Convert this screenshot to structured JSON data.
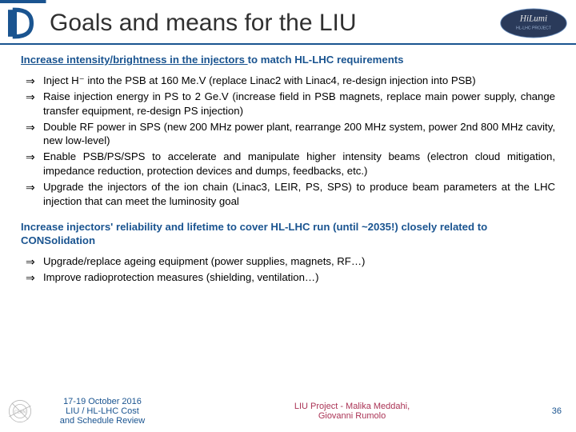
{
  "title": "Goals and means for the LIU",
  "logos": {
    "left_color": "#1a5490",
    "right_text1": "HiLumi",
    "right_text2": "HL-LHC PROJECT",
    "right_bg": "#2a3a5a",
    "right_accent1": "#6a8fbf",
    "right_accent2": "#e8e8e8"
  },
  "section1": {
    "head_u": "Increase intensity/brightness in the injectors ",
    "head_rest": "to match HL-LHC requirements",
    "color": "#1a5490",
    "bullets": [
      "Inject H⁻ into the PSB at 160 Me.V (replace Linac2 with Linac4, re-design injection into PSB)",
      "Raise injection energy in PS to 2 Ge.V (increase field in PSB magnets, replace main power supply, change transfer equipment, re-design PS injection)",
      "Double RF power in SPS (new 200 MHz power plant, rearrange 200 MHz system, power 2nd 800 MHz cavity, new low-level)",
      "Enable PSB/PS/SPS to accelerate and manipulate higher intensity beams (electron cloud mitigation, impedance reduction, protection devices and dumps, feedbacks, etc.)",
      "Upgrade the injectors of the ion chain (Linac3, LEIR, PS, SPS) to produce beam parameters at the LHC injection that can meet the luminosity goal"
    ]
  },
  "section2": {
    "head": "Increase injectors' reliability and lifetime to cover HL-LHC run (until ~2035!) closely related to CONSolidation",
    "bullets": [
      "Upgrade/replace ageing equipment (power supplies, magnets, RF…)",
      "Improve radioprotection measures (shielding, ventilation…)"
    ]
  },
  "footer": {
    "left_line1": "17-19 October 2016",
    "left_line2": "LIU / HL-LHC Cost",
    "left_line3": "and Schedule Review",
    "mid_line1": "LIU Project - Malika Meddahi,",
    "mid_line2": "Giovanni Rumolo",
    "page": "36",
    "left_color": "#1a5490",
    "mid_color": "#aa3355"
  },
  "arrow_symbol": "⇒"
}
